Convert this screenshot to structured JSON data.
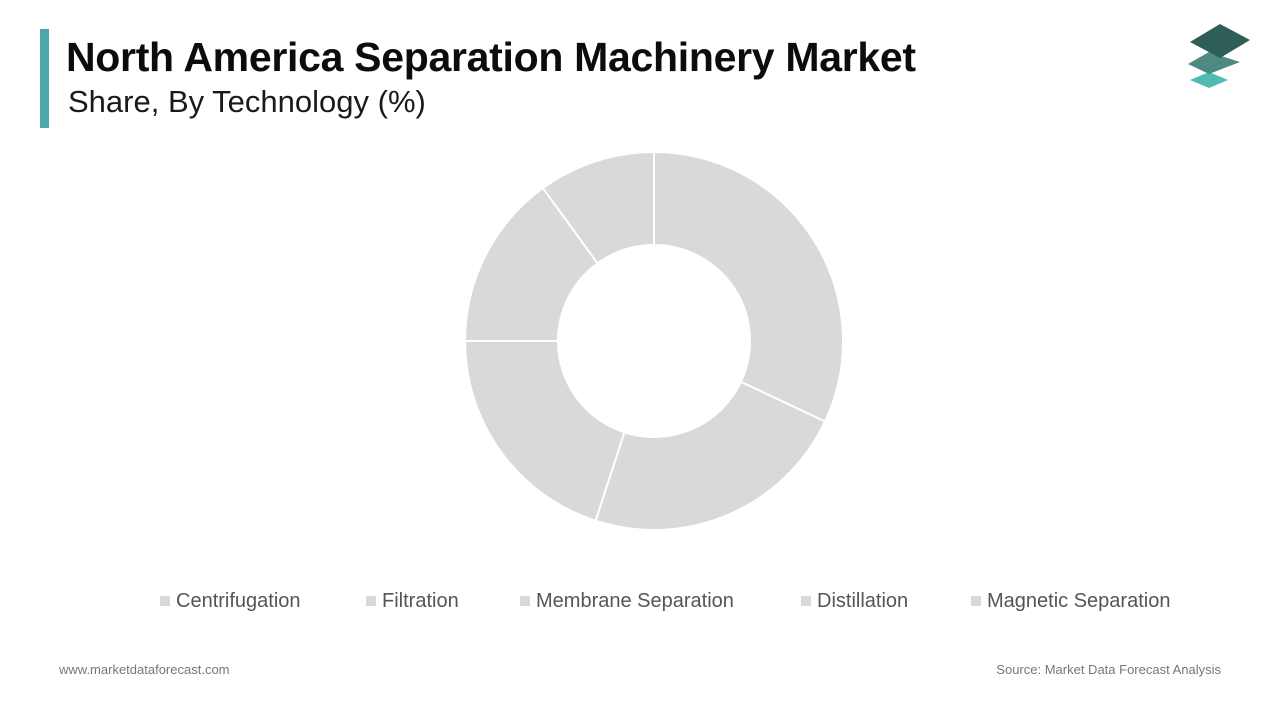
{
  "header": {
    "title": "North America Separation Machinery Market",
    "subtitle": "Share, By Technology (%)"
  },
  "colors": {
    "accent": "#4aa8a8",
    "logo_dark": "#2f5d57",
    "logo_mid": "#4e8a82",
    "logo_light": "#4fbcb3",
    "slice_fill": "#d9d9d9",
    "slice_stroke": "#ffffff",
    "legend_swatch": "#d9d9d9"
  },
  "icons": {
    "logo": "stacked-layers-logo"
  },
  "chart_data": {
    "type": "pie",
    "donut": true,
    "categories": [
      "Centrifugation",
      "Filtration",
      "Membrane Separation",
      "Distillation",
      "Magnetic Separation"
    ],
    "values": [
      32,
      23,
      20,
      15,
      10
    ],
    "legend_position": "bottom"
  },
  "footer": {
    "website": "www.marketdataforecast.com",
    "source": "Source: Market Data Forecast Analysis"
  }
}
